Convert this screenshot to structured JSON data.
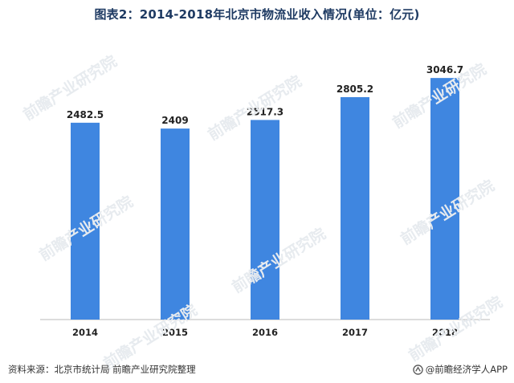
{
  "title": "图表2：2014-2018年北京市物流业收入情况(单位：亿元)",
  "footer": {
    "source_label": "资料来源：",
    "source_text": "北京市统计局 前瞻产业研究院整理",
    "brand_text": "@前瞻经济学人APP",
    "brand_icon": "qianzhan-logo-icon"
  },
  "watermark": "前瞻产业研究院",
  "colors": {
    "bar": "#3f86e0",
    "axis": "#b8b8b8",
    "title": "#1f3b63"
  },
  "chart_data": {
    "type": "bar",
    "title": "图表2：2014-2018年北京市物流业收入情况(单位：亿元)",
    "categories": [
      "2014",
      "2015",
      "2016",
      "2017",
      "2018"
    ],
    "values": [
      2482.5,
      2409,
      2517.3,
      2805.2,
      3046.7
    ],
    "data_labels": [
      "2482.5",
      "2409",
      "2517.3",
      "2805.2",
      "3046.7"
    ],
    "xlabel": "",
    "ylabel": "",
    "ylim": [
      0,
      3200
    ],
    "grid": false,
    "legend": "none"
  }
}
